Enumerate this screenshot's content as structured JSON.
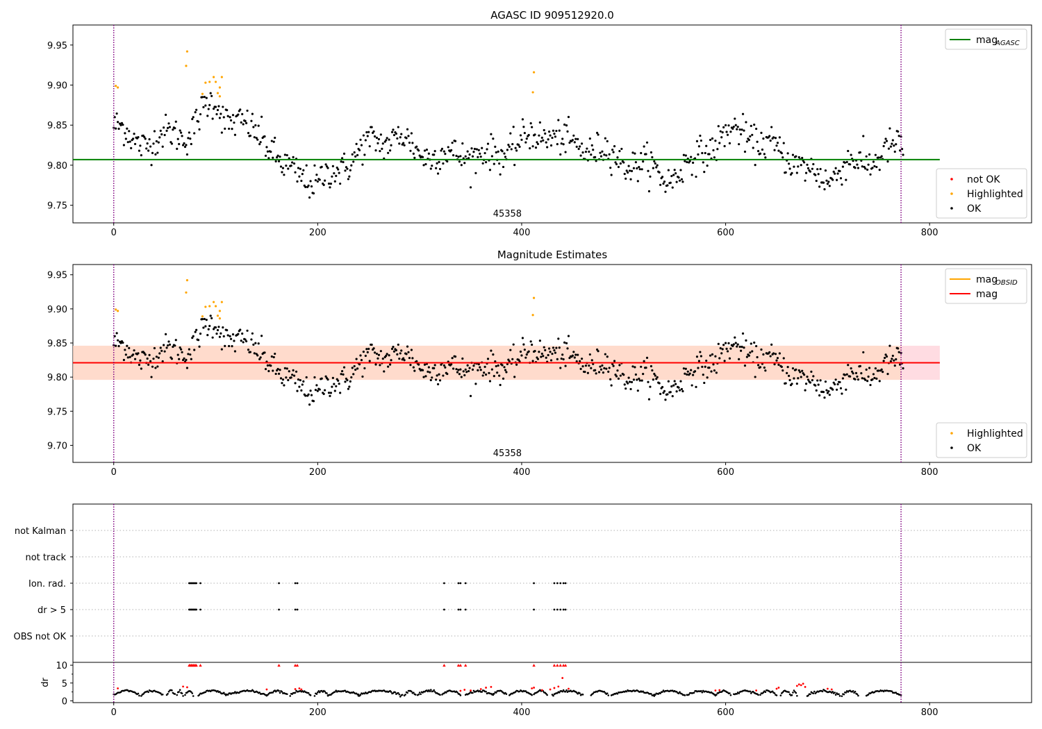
{
  "colors": {
    "ok": "#000000",
    "highlighted": "#ffa500",
    "not_ok": "#ff0000",
    "mag_agasc": "#008000",
    "mag_obsid": "#ffa500",
    "mag": "#ff0000",
    "band": "#ffc0cb",
    "band_inner": "#ffdab9",
    "vline": "#800080",
    "grid": "#b0b0b0"
  },
  "chart_data": [
    {
      "type": "scatter",
      "title": "AGASC ID 909512920.0",
      "xlim": [
        -40,
        900
      ],
      "ylim": [
        9.728,
        9.975
      ],
      "xticks": [
        0,
        200,
        400,
        600,
        800
      ],
      "yticks": [
        9.75,
        9.8,
        9.85,
        9.9,
        9.95
      ],
      "ytick_labels": [
        "9.75",
        "9.80",
        "9.85",
        "9.90",
        "9.95"
      ],
      "obsid_label": "45358",
      "obsid_x": 386,
      "vlines": [
        0,
        772
      ],
      "hlines": [
        {
          "name": "mag",
          "sub": "AGASC",
          "y": 9.807,
          "x": [
            -40,
            810
          ],
          "color": "#008000"
        }
      ],
      "legends": [
        {
          "placement": "top-right",
          "entries": [
            {
              "label": "mag",
              "sub": "AGASC",
              "kind": "line",
              "color": "#008000"
            }
          ]
        },
        {
          "placement": "lower-right",
          "entries": [
            {
              "label": "not OK",
              "kind": "dot",
              "color": "#ff0000"
            },
            {
              "label": "Highlighted",
              "kind": "dot",
              "color": "#ffa500"
            },
            {
              "label": "OK",
              "kind": "dot",
              "color": "#000000"
            }
          ]
        }
      ],
      "trend": {
        "n": 775,
        "amplitude": 0.0065,
        "scatter": 0.013,
        "anchors": [
          [
            0,
            9.85
          ],
          [
            20,
            9.83
          ],
          [
            40,
            9.83
          ],
          [
            60,
            9.84
          ],
          [
            75,
            9.84
          ],
          [
            90,
            9.87
          ],
          [
            100,
            9.88
          ],
          [
            110,
            9.86
          ],
          [
            130,
            9.845
          ],
          [
            145,
            9.84
          ],
          [
            155,
            9.82
          ],
          [
            165,
            9.795
          ],
          [
            185,
            9.79
          ],
          [
            200,
            9.775
          ],
          [
            215,
            9.79
          ],
          [
            235,
            9.81
          ],
          [
            255,
            9.83
          ],
          [
            280,
            9.835
          ],
          [
            295,
            9.82
          ],
          [
            320,
            9.81
          ],
          [
            345,
            9.815
          ],
          [
            370,
            9.81
          ],
          [
            395,
            9.825
          ],
          [
            410,
            9.835
          ],
          [
            430,
            9.84
          ],
          [
            445,
            9.825
          ],
          [
            475,
            9.82
          ],
          [
            500,
            9.805
          ],
          [
            520,
            9.8
          ],
          [
            540,
            9.785
          ],
          [
            555,
            9.79
          ],
          [
            575,
            9.815
          ],
          [
            600,
            9.835
          ],
          [
            615,
            9.845
          ],
          [
            635,
            9.825
          ],
          [
            660,
            9.815
          ],
          [
            680,
            9.79
          ],
          [
            700,
            9.785
          ],
          [
            720,
            9.8
          ],
          [
            750,
            9.81
          ],
          [
            772,
            9.825
          ]
        ]
      },
      "highlighted": [
        [
          2,
          9.899
        ],
        [
          4,
          9.897
        ],
        [
          71,
          9.924
        ],
        [
          72,
          9.942
        ],
        [
          87,
          9.889
        ],
        [
          90,
          9.903
        ],
        [
          94,
          9.904
        ],
        [
          98,
          9.91
        ],
        [
          100,
          9.904
        ],
        [
          102,
          9.89
        ],
        [
          104,
          9.897
        ],
        [
          106,
          9.91
        ],
        [
          104,
          9.886
        ],
        [
          412,
          9.916
        ],
        [
          411,
          9.891
        ]
      ]
    },
    {
      "type": "scatter",
      "title": "Magnitude Estimates",
      "xlim": [
        -40,
        900
      ],
      "ylim": [
        9.675,
        9.965
      ],
      "xticks": [
        0,
        200,
        400,
        600,
        800
      ],
      "yticks": [
        9.7,
        9.75,
        9.8,
        9.85,
        9.9,
        9.95
      ],
      "ytick_labels": [
        "9.70",
        "9.75",
        "9.80",
        "9.85",
        "9.90",
        "9.95"
      ],
      "obsid_label": "45358",
      "obsid_x": 386,
      "vlines": [
        0,
        772
      ],
      "bands": [
        {
          "x": [
            -40,
            810
          ],
          "y": [
            9.796,
            9.846
          ],
          "color": "#ffc0cb"
        },
        {
          "x": [
            -40,
            772
          ],
          "y": [
            9.796,
            9.846
          ],
          "color": "#ffdab9"
        }
      ],
      "hlines": [
        {
          "name": "mag",
          "sub": "OBSID",
          "y": 9.821,
          "x": [
            -40,
            772
          ],
          "color": "#ffa500"
        },
        {
          "name": "mag",
          "y": 9.821,
          "x": [
            -40,
            810
          ],
          "color": "#ff0000"
        }
      ],
      "legends": [
        {
          "placement": "top-right",
          "entries": [
            {
              "label": "mag",
              "sub": "OBSID",
              "kind": "line",
              "color": "#ffa500"
            },
            {
              "label": "mag",
              "kind": "line",
              "color": "#ff0000"
            }
          ]
        },
        {
          "placement": "lower-right",
          "entries": [
            {
              "label": "Highlighted",
              "kind": "dot",
              "color": "#ffa500"
            },
            {
              "label": "OK",
              "kind": "dot",
              "color": "#000000"
            }
          ]
        }
      ],
      "same_points_as": 0
    },
    {
      "type": "scatter",
      "title": "",
      "xlim": [
        -40,
        900
      ],
      "vlines": [
        0,
        772
      ],
      "categories": [
        "not Kalman",
        "not track",
        "Ion. rad.",
        "dr > 5",
        "OBS not OK"
      ],
      "flags": {
        "Ion. rad.": [
          74,
          75,
          76,
          77,
          78,
          79,
          80,
          81,
          85,
          162,
          178,
          180,
          324,
          338,
          340,
          345,
          412,
          432,
          435,
          438,
          441,
          443
        ],
        "dr > 5": [
          74,
          75,
          76,
          77,
          78,
          79,
          80,
          81,
          85,
          162,
          178,
          180,
          324,
          338,
          340,
          345,
          412,
          432,
          435,
          438,
          441,
          443
        ]
      }
    },
    {
      "type": "scatter",
      "title": "",
      "ylabel": "dr",
      "xlim": [
        -40,
        900
      ],
      "ylim": [
        -0.5,
        10.8
      ],
      "xticks": [
        0,
        200,
        400,
        600,
        800
      ],
      "yticks": [
        0,
        5,
        10
      ],
      "ytick_labels": [
        "0",
        "5",
        "10"
      ],
      "vlines": [
        0,
        772
      ],
      "capped_value": 10,
      "capped_x": [
        74,
        75,
        76,
        77,
        78,
        79,
        80,
        81,
        85,
        162,
        178,
        180,
        324,
        338,
        340,
        345,
        412,
        432,
        435,
        438,
        441,
        443
      ],
      "red_points": [
        [
          4,
          3.5
        ],
        [
          68,
          4.0
        ],
        [
          72,
          3.8
        ],
        [
          150,
          3.2
        ],
        [
          178,
          3.3
        ],
        [
          182,
          3.5
        ],
        [
          184,
          3.2
        ],
        [
          340,
          2.8
        ],
        [
          344,
          3.1
        ],
        [
          350,
          2.9
        ],
        [
          360,
          3.3
        ],
        [
          365,
          3.7
        ],
        [
          370,
          3.9
        ],
        [
          410,
          3.5
        ],
        [
          412,
          3.7
        ],
        [
          420,
          3.0
        ],
        [
          428,
          3.2
        ],
        [
          432,
          3.6
        ],
        [
          436,
          4.0
        ],
        [
          440,
          6.4
        ],
        [
          446,
          3.4
        ],
        [
          590,
          2.9
        ],
        [
          594,
          3.0
        ],
        [
          630,
          2.9
        ],
        [
          650,
          3.4
        ],
        [
          652,
          3.7
        ],
        [
          670,
          4.2
        ],
        [
          672,
          4.6
        ],
        [
          674,
          4.4
        ],
        [
          676,
          4.8
        ],
        [
          678,
          3.9
        ],
        [
          700,
          3.4
        ],
        [
          704,
          3.2
        ]
      ],
      "segments": [
        [
          0,
          25
        ],
        [
          27,
          48
        ],
        [
          52,
          60
        ],
        [
          62,
          68
        ],
        [
          70,
          78
        ],
        [
          83,
          110
        ],
        [
          110,
          150
        ],
        [
          150,
          170
        ],
        [
          173,
          193
        ],
        [
          197,
          210
        ],
        [
          210,
          240
        ],
        [
          240,
          283
        ],
        [
          285,
          296
        ],
        [
          298,
          320
        ],
        [
          322,
          340
        ],
        [
          345,
          372
        ],
        [
          372,
          385
        ],
        [
          388,
          410
        ],
        [
          412,
          425
        ],
        [
          430,
          460
        ],
        [
          468,
          485
        ],
        [
          488,
          530
        ],
        [
          530,
          560
        ],
        [
          562,
          590
        ],
        [
          590,
          605
        ],
        [
          608,
          632
        ],
        [
          634,
          650
        ],
        [
          654,
          664
        ],
        [
          665,
          670
        ],
        [
          680,
          712
        ],
        [
          714,
          730
        ],
        [
          738,
          772
        ]
      ],
      "dr_shape": {
        "base": 0.6,
        "amp": 2.2
      }
    }
  ]
}
